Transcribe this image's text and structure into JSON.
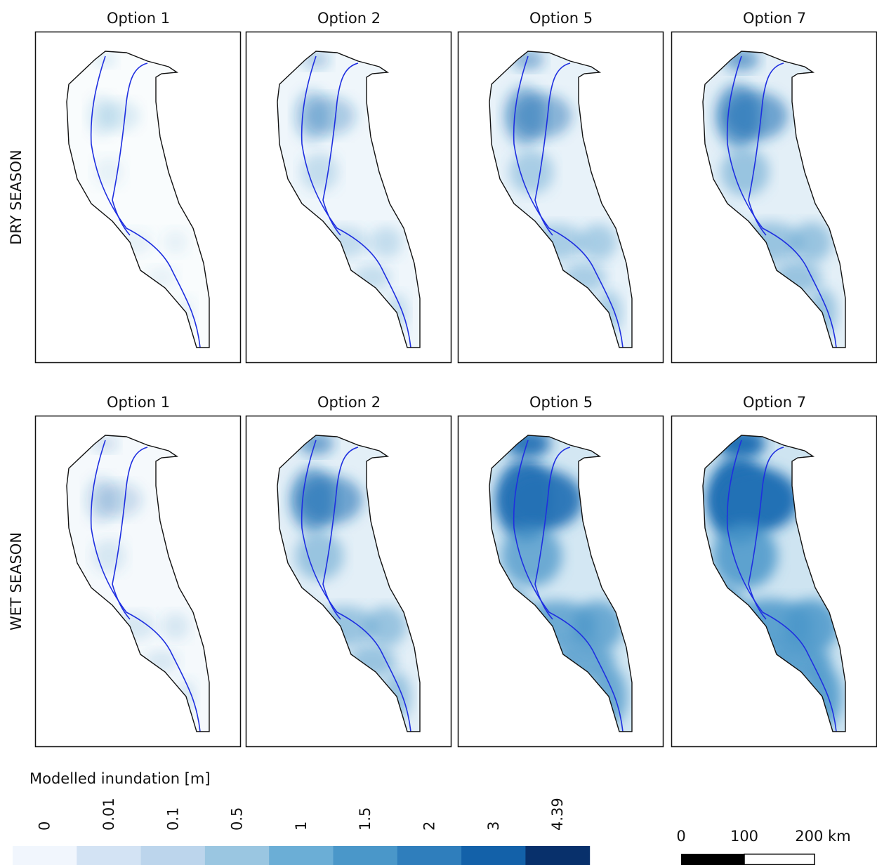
{
  "panels": {
    "rows": [
      {
        "label": "DRY SEASON",
        "columns": [
          "Option 1",
          "Option 2",
          "Option 5",
          "Option 7"
        ]
      },
      {
        "label": "WET SEASON",
        "columns": [
          "Option 1",
          "Option 2",
          "Option 5",
          "Option 7"
        ]
      }
    ]
  },
  "legend": {
    "title": "Modelled inundation [m]",
    "labels": [
      "0",
      "0.01",
      "0.1",
      "0.5",
      "1",
      "1.5",
      "2",
      "3",
      "4.39"
    ],
    "colors": [
      "#f1f6fd",
      "#d3e3f4",
      "#bcd5ec",
      "#9ac6e1",
      "#6baed6",
      "#4a97c9",
      "#2f7ebc",
      "#1361a9",
      "#08306b"
    ]
  },
  "scale_bar": {
    "labels": [
      "0",
      "100",
      "200 km"
    ]
  }
}
